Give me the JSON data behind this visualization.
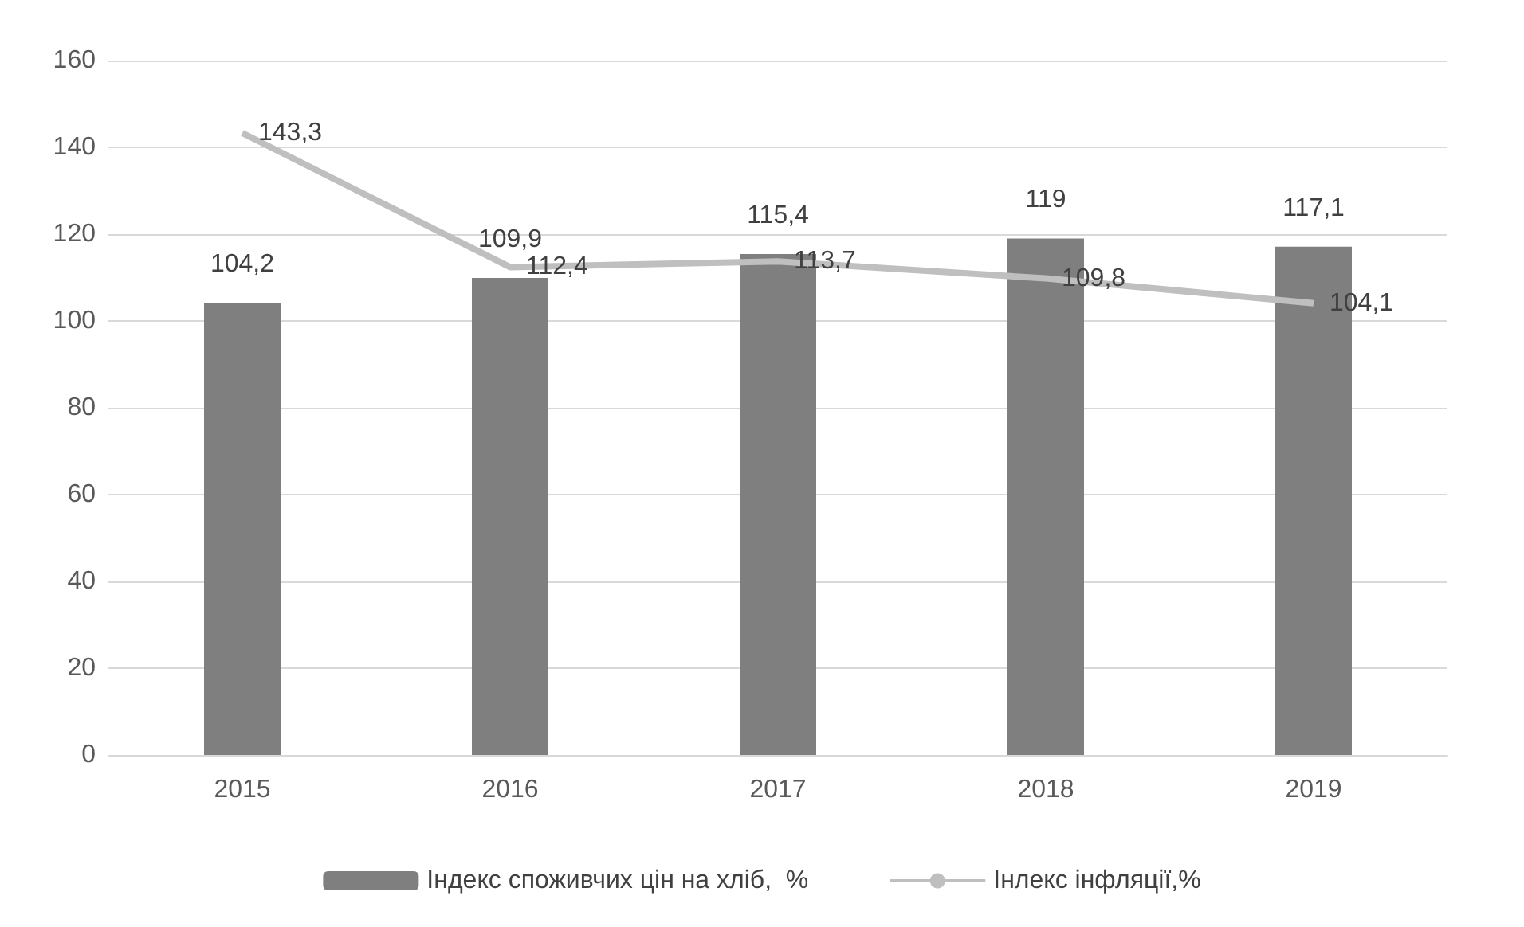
{
  "chart_data": {
    "type": "bar",
    "categories": [
      "2015",
      "2016",
      "2017",
      "2018",
      "2019"
    ],
    "series": [
      {
        "name": "Індекс споживчих цін на хліб,  %",
        "color": "#7f7f7f",
        "values": [
          104.2,
          109.9,
          115.4,
          119,
          117.1
        ],
        "value_labels": [
          "104,2",
          "109,9",
          "115,4",
          "119",
          "117,1"
        ]
      },
      {
        "name": "Інлекс інфляції,%",
        "type": "line",
        "color": "#bfbfbf",
        "values": [
          143.3,
          112.4,
          113.7,
          109.8,
          104.1
        ],
        "value_labels": [
          "143,3",
          "112,4",
          "113,7",
          "109,8",
          "104,1"
        ]
      }
    ],
    "ylim": [
      0,
      160
    ],
    "yticks": [
      0,
      20,
      40,
      60,
      80,
      100,
      120,
      140,
      160
    ],
    "grid": "y",
    "legend": "bottom",
    "marker": "none"
  }
}
